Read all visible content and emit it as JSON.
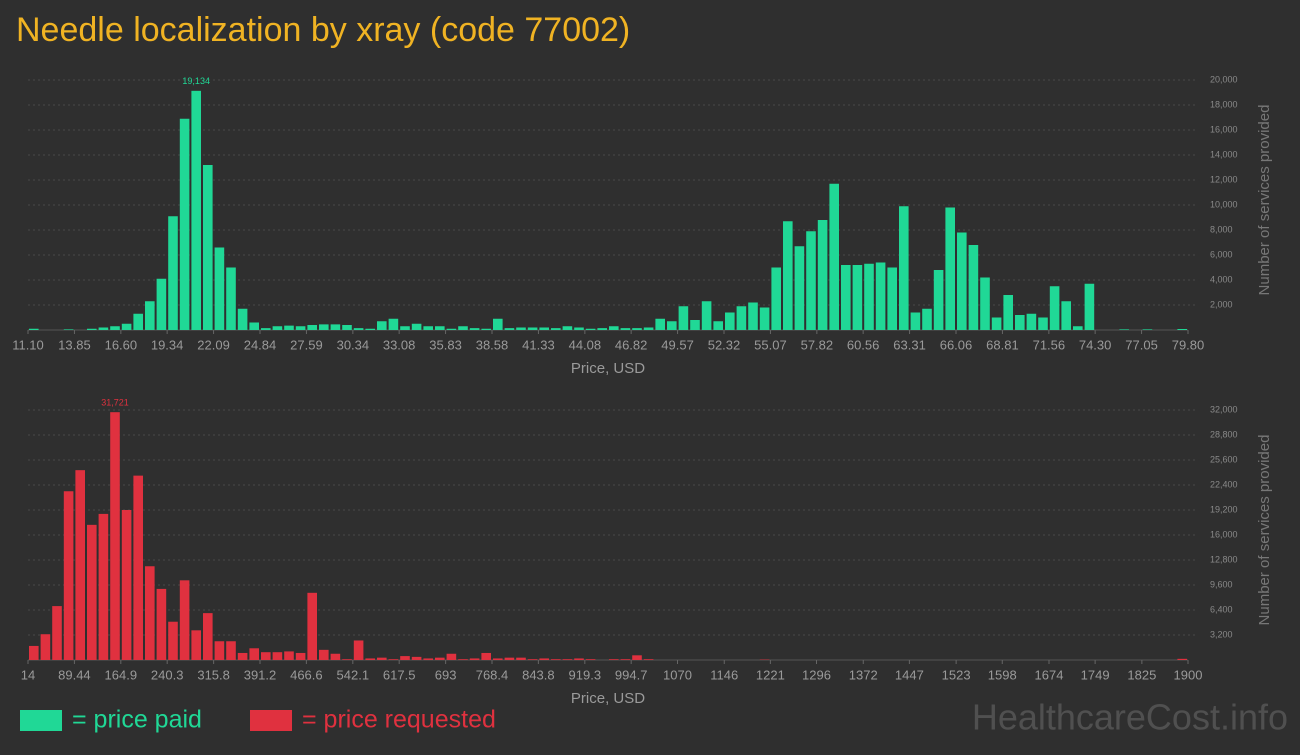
{
  "title": "Needle localization by xray (code 77002)",
  "watermark": "HealthcareCost.info",
  "chart_data": [
    {
      "type": "histogram",
      "name": "= price paid",
      "color": "#20d896",
      "xlabel": "Price, USD",
      "ylabel": "Number of services provided",
      "bins": [
        11.1,
        11.787,
        12.474,
        13.161,
        13.848,
        14.535,
        15.222,
        15.909,
        16.596,
        17.283,
        17.97,
        18.657,
        19.344,
        20.031,
        20.718,
        21.405,
        22.092,
        22.779,
        23.466,
        24.153,
        24.84,
        25.527,
        26.214,
        26.901,
        27.588,
        28.275,
        28.962,
        29.649,
        30.336,
        31.023,
        31.71,
        32.397,
        33.084,
        33.771,
        34.458,
        35.145,
        35.832,
        36.519,
        37.206,
        37.893,
        38.58,
        39.267,
        39.954,
        40.641,
        41.328,
        42.015,
        42.702,
        43.389,
        44.076,
        44.763,
        45.45,
        46.137,
        46.824,
        47.511,
        48.198,
        48.885,
        49.572,
        50.259,
        50.946,
        51.633,
        52.32,
        53.007,
        53.694,
        54.381,
        55.068,
        55.755,
        56.442,
        57.129,
        57.816,
        58.503,
        59.19,
        59.877,
        60.564,
        61.251,
        61.938,
        62.625,
        63.312,
        63.999,
        64.686,
        65.373,
        66.06,
        66.747,
        67.434,
        68.121,
        68.808,
        69.495,
        70.182,
        70.869,
        71.556,
        72.243,
        72.93,
        73.617,
        74.304,
        74.991,
        75.678,
        76.365,
        77.052,
        77.739,
        78.426,
        79.113,
        79.8
      ],
      "values": [
        100,
        0,
        0,
        50,
        0,
        100,
        200,
        300,
        500,
        1300,
        2300,
        4100,
        9100,
        16900,
        19134,
        13200,
        6600,
        5000,
        1700,
        600,
        150,
        300,
        350,
        300,
        400,
        450,
        450,
        400,
        150,
        100,
        700,
        900,
        300,
        500,
        300,
        300,
        100,
        300,
        150,
        100,
        900,
        150,
        200,
        200,
        200,
        150,
        300,
        200,
        100,
        150,
        300,
        150,
        150,
        200,
        900,
        700,
        1900,
        800,
        2300,
        700,
        1400,
        1900,
        2200,
        1800,
        5000,
        8700,
        6700,
        7900,
        8800,
        11700,
        5200,
        5200,
        5300,
        5400,
        5000,
        9900,
        1400,
        1700,
        4800,
        9800,
        7800,
        6800,
        4200,
        1000,
        2800,
        1200,
        1300,
        1000,
        3500,
        2300,
        300,
        3700,
        0,
        0,
        50,
        0,
        50,
        0,
        0,
        80
      ],
      "value_labels": [
        null,
        null,
        null,
        null,
        null,
        null,
        null,
        null,
        null,
        null,
        null,
        null,
        null,
        null,
        "19,134",
        null,
        null,
        null,
        null,
        null,
        null,
        null,
        null,
        null,
        null,
        null,
        null,
        null,
        null,
        null,
        null,
        null,
        null,
        null,
        null,
        null,
        null,
        null,
        null,
        null,
        null,
        null,
        null,
        null,
        null,
        null,
        null,
        null,
        null,
        null,
        null,
        null,
        null,
        null,
        null,
        null,
        null,
        null,
        null,
        null,
        null,
        null,
        null,
        null,
        null,
        null,
        null,
        null,
        null,
        null,
        null,
        null,
        null,
        null,
        null,
        null,
        null,
        null,
        null,
        null,
        null,
        null,
        null,
        null,
        null,
        null,
        null,
        null,
        null,
        null,
        null,
        null,
        null,
        null,
        null,
        null,
        null,
        null,
        null,
        null
      ],
      "xlim": [
        11.1,
        79.8
      ],
      "xticks": [
        {
          "value": 11.1,
          "label": "11.10"
        },
        13.85,
        {
          "value": 16.6,
          "label": "16.60"
        },
        19.34,
        22.09,
        24.84,
        27.59,
        30.34,
        33.08,
        35.83,
        38.58,
        41.33,
        44.08,
        46.82,
        49.57,
        52.32,
        55.07,
        57.82,
        60.56,
        63.31,
        66.06,
        68.81,
        71.56,
        {
          "value": 74.3,
          "label": "74.30"
        },
        77.05,
        {
          "value": 79.8,
          "label": "79.80"
        }
      ],
      "ylim": [
        0,
        20000
      ],
      "yticks": [
        {
          "value": 2000,
          "label": "2,000"
        },
        {
          "value": 4000,
          "label": "4,000"
        },
        {
          "value": 6000,
          "label": "6,000"
        },
        {
          "value": 8000,
          "label": "8,000"
        },
        {
          "value": 10000,
          "label": "10,000"
        },
        {
          "value": 12000,
          "label": "12,000"
        },
        {
          "value": 14000,
          "label": "14,000"
        },
        {
          "value": 16000,
          "label": "16,000"
        },
        {
          "value": 18000,
          "label": "18,000"
        },
        {
          "value": 20000,
          "label": "20,000"
        }
      ],
      "grid": true
    },
    {
      "type": "histogram",
      "name": "= price requested",
      "color": "#e0313f",
      "xlabel": "Price, USD",
      "ylabel": "Number of services provided",
      "bins": [
        14,
        32.86,
        51.72,
        70.58,
        89.44,
        108.3,
        127.16,
        146.02,
        164.88,
        183.74,
        202.6,
        221.46,
        240.32,
        259.18,
        278.04,
        296.9,
        315.76,
        334.62,
        353.48,
        372.34,
        391.2,
        410.06,
        428.92,
        447.78,
        466.64,
        485.5,
        504.36,
        523.22,
        542.08,
        560.94,
        579.8,
        598.66,
        617.52,
        636.38,
        655.24,
        674.1,
        692.96,
        711.82,
        730.68,
        749.54,
        768.4,
        787.26,
        806.12,
        824.98,
        843.84,
        862.7,
        881.56,
        900.42,
        919.28,
        938.14,
        957,
        975.86,
        994.72,
        1013.58,
        1032.44,
        1051.3,
        1070.16,
        1089.02,
        1107.88,
        1126.74,
        1145.6,
        1164.46,
        1183.32,
        1202.18,
        1221.04,
        1239.9,
        1258.76,
        1277.62,
        1296.48,
        1315.34,
        1334.2,
        1353.06,
        1371.92,
        1390.78,
        1409.64,
        1428.5,
        1447.36,
        1466.22,
        1485.08,
        1503.94,
        1522.8,
        1541.66,
        1560.52,
        1579.38,
        1598.24,
        1617.1,
        1635.96,
        1654.82,
        1673.68,
        1692.54,
        1711.4,
        1730.26,
        1749.12,
        1767.98,
        1786.84,
        1805.7,
        1824.56,
        1843.42,
        1862.28,
        1881.14,
        1900
      ],
      "values": [
        1800,
        3300,
        6900,
        21600,
        24300,
        17300,
        18700,
        31721,
        19200,
        23600,
        12000,
        9100,
        4900,
        10200,
        3800,
        6000,
        2400,
        2400,
        900,
        1500,
        1000,
        1000,
        1100,
        900,
        8600,
        1300,
        800,
        100,
        2500,
        200,
        300,
        100,
        500,
        400,
        200,
        300,
        800,
        100,
        200,
        900,
        200,
        300,
        300,
        100,
        200,
        100,
        100,
        200,
        100,
        0,
        100,
        100,
        600,
        100,
        0,
        0,
        0,
        0,
        0,
        0,
        0,
        0,
        0,
        50,
        0,
        0,
        0,
        0,
        0,
        0,
        0,
        0,
        0,
        0,
        0,
        0,
        0,
        0,
        0,
        0,
        0,
        0,
        0,
        0,
        0,
        0,
        0,
        0,
        0,
        0,
        0,
        0,
        0,
        0,
        0,
        0,
        0,
        0,
        0,
        150
      ],
      "value_labels": [
        null,
        null,
        null,
        null,
        null,
        null,
        null,
        "31,721",
        null,
        null,
        null,
        null,
        null,
        null,
        null,
        null,
        null,
        null,
        null,
        null,
        null,
        null,
        null,
        null,
        null,
        null,
        null,
        null,
        null,
        null,
        null,
        null,
        null,
        null,
        null,
        null,
        null,
        null,
        null,
        null,
        null,
        null,
        null,
        null,
        null,
        null,
        null,
        null,
        null,
        null,
        null,
        null,
        null,
        null,
        null,
        null,
        null,
        null,
        null,
        null,
        null,
        null,
        null,
        null,
        null,
        null,
        null,
        null,
        null,
        null,
        null,
        null,
        null,
        null,
        null,
        null,
        null,
        null,
        null,
        null,
        null,
        null,
        null,
        null,
        null,
        null,
        null,
        null,
        null,
        null,
        null,
        null,
        null,
        null,
        null,
        null,
        null,
        null,
        null,
        null
      ],
      "xlim": [
        14,
        1900
      ],
      "xticks": [
        14,
        89.44,
        164.9,
        240.3,
        315.8,
        391.2,
        466.6,
        542.1,
        617.5,
        693,
        768.4,
        843.8,
        919.3,
        994.7,
        1070,
        1146,
        1221,
        1296,
        1372,
        1447,
        1523,
        1598,
        1674,
        1749,
        1825,
        1900
      ],
      "ylim": [
        0,
        32000
      ],
      "yticks": [
        {
          "value": 3200,
          "label": "3,200"
        },
        {
          "value": 6400,
          "label": "6,400"
        },
        {
          "value": 9600,
          "label": "9,600"
        },
        {
          "value": 12800,
          "label": "12,800"
        },
        {
          "value": 16000,
          "label": "16,000"
        },
        {
          "value": 19200,
          "label": "19,200"
        },
        {
          "value": 22400,
          "label": "22,400"
        },
        {
          "value": 25600,
          "label": "25,600"
        },
        {
          "value": 28800,
          "label": "28,800"
        },
        {
          "value": 32000,
          "label": "32,000"
        }
      ],
      "grid": true
    }
  ]
}
